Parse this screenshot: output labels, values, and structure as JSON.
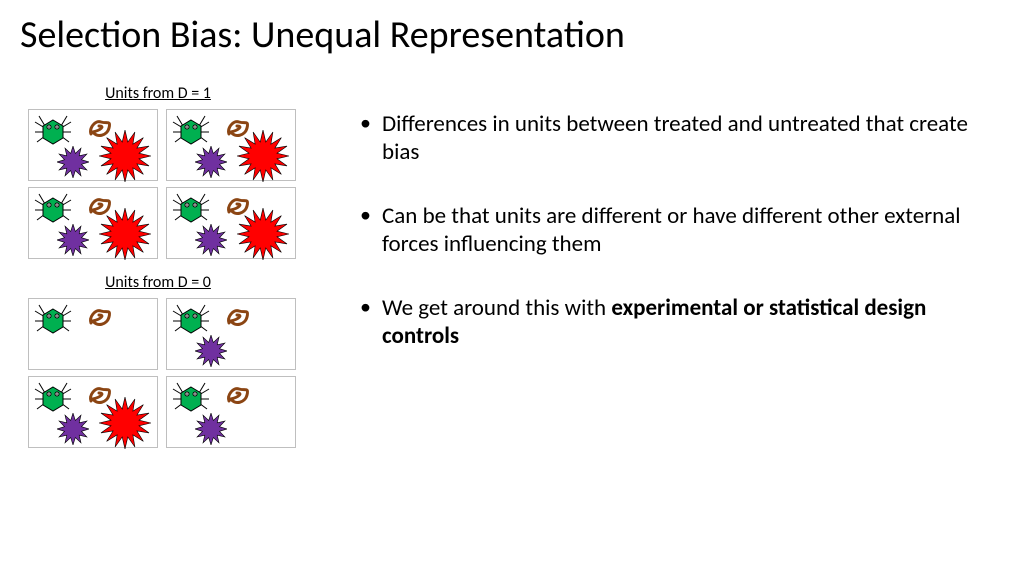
{
  "title": "Selection Bias: Unequal Representation",
  "groups": {
    "d1": {
      "label": "Units from D = 1",
      "boxes": [
        {
          "crab": true,
          "scribble": true,
          "purple": true,
          "red": true
        },
        {
          "crab": true,
          "scribble": true,
          "purple": true,
          "red": true
        },
        {
          "crab": true,
          "scribble": true,
          "purple": true,
          "red": true
        },
        {
          "crab": true,
          "scribble": true,
          "purple": true,
          "red": true
        }
      ]
    },
    "d0": {
      "label": "Units from D = 0",
      "boxes": [
        {
          "crab": true,
          "scribble": true,
          "purple": false,
          "red": false
        },
        {
          "crab": true,
          "scribble": true,
          "purple": true,
          "red": false
        },
        {
          "crab": true,
          "scribble": true,
          "purple": true,
          "red": true
        },
        {
          "crab": true,
          "scribble": true,
          "purple": true,
          "red": false
        }
      ]
    }
  },
  "bullets": [
    {
      "text": "Differences in units between treated and untreated that create bias",
      "bold_tail": null
    },
    {
      "text": "Can be that units are different or have different other external forces influencing them",
      "bold_tail": null
    },
    {
      "text": "We get around this with ",
      "bold_tail": "experimental or statistical design controls"
    }
  ],
  "colors": {
    "crab_body": "#00b050",
    "crab_stroke": "#000000",
    "scribble": "#8b4513",
    "purple": "#7030a0",
    "red": "#ff0000",
    "box_border": "#bfbfbf",
    "text": "#000000",
    "bg": "#ffffff"
  },
  "fonts": {
    "title_size": 38,
    "label_size": 16,
    "bullet_size": 23
  }
}
